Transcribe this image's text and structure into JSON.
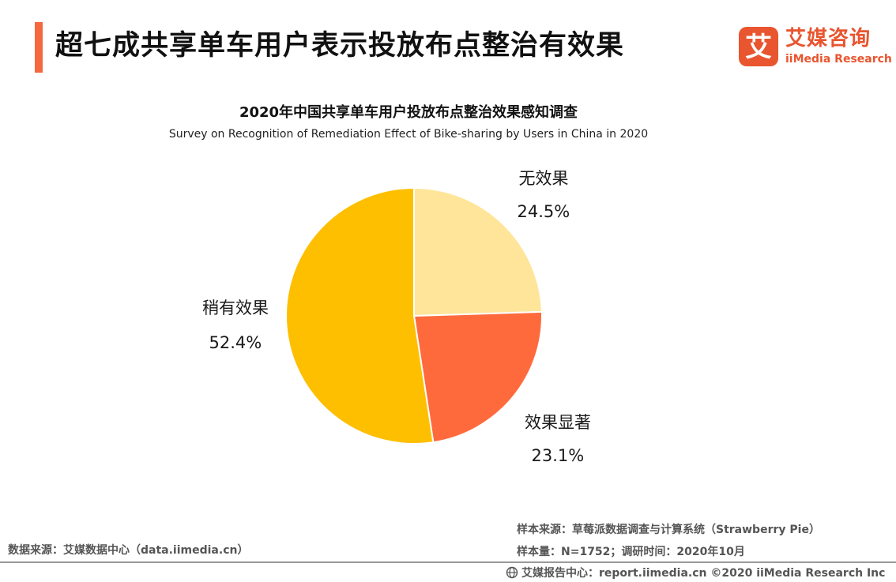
{
  "header": {
    "headline": "超七成共享单车用户表示投放布点整治有效果"
  },
  "logo": {
    "name_cn": "艾媒咨询",
    "name_en": "iiMedia Research",
    "glyph": "艾",
    "color": "#e8552f"
  },
  "chart_data": {
    "type": "pie",
    "title": "2020年中国共享单车用户投放布点整治效果感知调查",
    "subtitle": "Survey on Recognition of Remediation Effect of Bike-sharing by Users in China in 2020",
    "slices": [
      {
        "label": "无效果",
        "value": 24.5,
        "value_label": "24.5%",
        "color": "#fee599"
      },
      {
        "label": "效果显著",
        "value": 23.1,
        "value_label": "23.1%",
        "color": "#ff6a3d"
      },
      {
        "label": "稍有效果",
        "value": 52.4,
        "value_label": "52.4%",
        "color": "#fdbf00"
      }
    ],
    "start_angle": "12 o'clock",
    "direction": "clockwise",
    "legend": "none"
  },
  "footer": {
    "data_source": "数据来源：艾媒数据中心（data.iimedia.cn）",
    "sample_source": "样本来源：草莓派数据调查与计算系统（Strawberry Pie）",
    "sample_size": "样本量：N=1752；调研时间：2020年10月",
    "copyright": "艾媒报告中心：report.iimedia.cn ©2020  iiMedia Research  Inc"
  }
}
